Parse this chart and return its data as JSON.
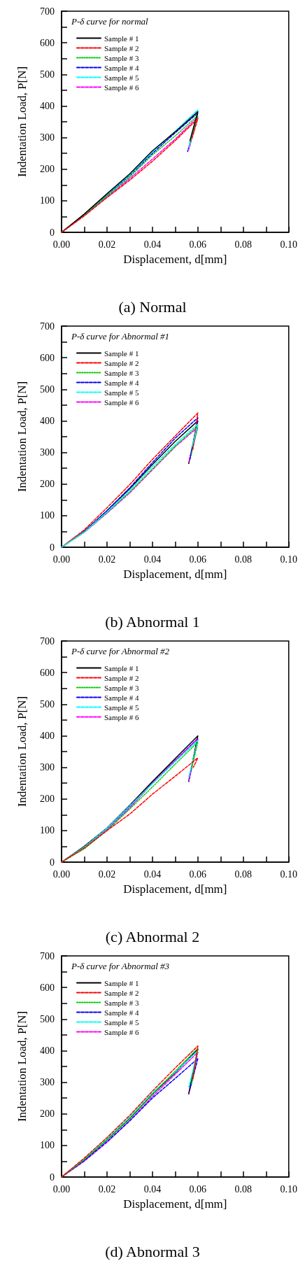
{
  "chart_data": [
    {
      "type": "line",
      "title": "(a) Normal",
      "legend_title": "P-δ curve for normal",
      "xlabel": "Displacement, d[mm]",
      "ylabel": "Indentation Load, P[N]",
      "xlim": [
        0,
        0.1
      ],
      "ylim": [
        0,
        700
      ],
      "xticks": [
        {
          "value": 0,
          "label": "0.00"
        },
        {
          "value": 0.01,
          "label": null
        },
        {
          "value": 0.02,
          "label": "0.02"
        },
        {
          "value": 0.03,
          "label": null
        },
        {
          "value": 0.04,
          "label": "0.04"
        },
        {
          "value": 0.05,
          "label": null
        },
        {
          "value": 0.06,
          "label": "0.06"
        },
        {
          "value": 0.07,
          "label": null
        },
        {
          "value": 0.08,
          "label": "0.08"
        },
        {
          "value": 0.09,
          "label": null
        },
        {
          "value": 0.1,
          "label": "0.10"
        }
      ],
      "yticks": [
        0,
        {
          "value": 50,
          "label": null
        },
        100,
        {
          "value": 150,
          "label": null
        },
        200,
        {
          "value": 250,
          "label": null
        },
        300,
        {
          "value": 350,
          "label": null
        },
        400,
        {
          "value": 450,
          "label": null
        },
        500,
        {
          "value": 550,
          "label": null
        },
        600,
        {
          "value": 650,
          "label": null
        },
        700
      ],
      "legend": "top left",
      "grid": false,
      "marker": "none",
      "series": [
        {
          "name": "Sample # 1",
          "color": "#000000",
          "line_style": "solid",
          "x": [
            0,
            0.01,
            0.02,
            0.03,
            0.04,
            0.05,
            0.06,
            0.0565
          ],
          "values": [
            0,
            58,
            122,
            185,
            258,
            318,
            382,
            290
          ]
        },
        {
          "name": "Sample # 2",
          "color": "#ff0000",
          "line_style": "dashed",
          "x": [
            0,
            0.01,
            0.02,
            0.03,
            0.04,
            0.05,
            0.06,
            0.0575
          ],
          "values": [
            0,
            52,
            110,
            165,
            225,
            290,
            360,
            300
          ]
        },
        {
          "name": "Sample # 3",
          "color": "#00cc00",
          "line_style": "dotted",
          "x": [
            0,
            0.01,
            0.02,
            0.03,
            0.04,
            0.05,
            0.06,
            0.0568
          ],
          "values": [
            0,
            55,
            115,
            175,
            245,
            305,
            370,
            285
          ]
        },
        {
          "name": "Sample # 4",
          "color": "#0000ff",
          "line_style": "dashed",
          "x": [
            0,
            0.01,
            0.02,
            0.03,
            0.04,
            0.05,
            0.06,
            0.0555
          ],
          "values": [
            0,
            56,
            118,
            180,
            250,
            315,
            378,
            256
          ]
        },
        {
          "name": "Sample # 5",
          "color": "#00ffff",
          "line_style": "dashed",
          "x": [
            0,
            0.01,
            0.02,
            0.03,
            0.04,
            0.05,
            0.06,
            0.056
          ],
          "values": [
            0,
            57,
            120,
            182,
            255,
            320,
            388,
            270
          ]
        },
        {
          "name": "Sample # 6",
          "color": "#ff00ff",
          "line_style": "dashed",
          "x": [
            0,
            0.01,
            0.02,
            0.03,
            0.04,
            0.05,
            0.06,
            0.056
          ],
          "values": [
            0,
            53,
            112,
            170,
            232,
            295,
            365,
            262
          ]
        }
      ]
    },
    {
      "type": "line",
      "title": "(b) Abnormal 1",
      "legend_title": "P-δ curve for Abnormal #1",
      "xlabel": "Displacement, d[mm]",
      "ylabel": "Indentation Load, P[N]",
      "xlim": [
        0,
        0.1
      ],
      "ylim": [
        0,
        700
      ],
      "xticks": [
        {
          "value": 0,
          "label": "0.00"
        },
        {
          "value": 0.01,
          "label": null
        },
        {
          "value": 0.02,
          "label": "0.02"
        },
        {
          "value": 0.03,
          "label": null
        },
        {
          "value": 0.04,
          "label": "0.04"
        },
        {
          "value": 0.05,
          "label": null
        },
        {
          "value": 0.06,
          "label": "0.06"
        },
        {
          "value": 0.07,
          "label": null
        },
        {
          "value": 0.08,
          "label": "0.08"
        },
        {
          "value": 0.09,
          "label": null
        },
        {
          "value": 0.1,
          "label": "0.10"
        }
      ],
      "yticks": [
        0,
        {
          "value": 50,
          "label": null
        },
        100,
        {
          "value": 150,
          "label": null
        },
        200,
        {
          "value": 250,
          "label": null
        },
        300,
        {
          "value": 350,
          "label": null
        },
        400,
        {
          "value": 450,
          "label": null
        },
        500,
        {
          "value": 550,
          "label": null
        },
        600,
        {
          "value": 650,
          "label": null
        },
        700
      ],
      "legend": "top left",
      "grid": false,
      "marker": "none",
      "series": [
        {
          "name": "Sample # 1",
          "color": "#000000",
          "line_style": "solid",
          "x": [
            0,
            0.01,
            0.02,
            0.03,
            0.04,
            0.05,
            0.06,
            0.056
          ],
          "values": [
            0,
            50,
            115,
            185,
            262,
            335,
            400,
            265
          ]
        },
        {
          "name": "Sample # 2",
          "color": "#ff0000",
          "line_style": "dashed",
          "x": [
            0,
            0.01,
            0.02,
            0.03,
            0.04,
            0.05,
            0.06,
            0.0578
          ],
          "values": [
            0,
            55,
            125,
            198,
            278,
            352,
            425,
            310
          ]
        },
        {
          "name": "Sample # 3",
          "color": "#00cc00",
          "line_style": "dotted",
          "x": [
            0,
            0.01,
            0.02,
            0.03,
            0.04,
            0.05,
            0.06,
            0.0572
          ],
          "values": [
            0,
            48,
            110,
            175,
            248,
            320,
            385,
            295
          ]
        },
        {
          "name": "Sample # 4",
          "color": "#0000ff",
          "line_style": "dashed",
          "x": [
            0,
            0.01,
            0.02,
            0.03,
            0.04,
            0.05,
            0.06,
            0.0566
          ],
          "values": [
            0,
            50,
            116,
            188,
            268,
            345,
            410,
            280
          ]
        },
        {
          "name": "Sample # 5",
          "color": "#00ffff",
          "line_style": "dashed",
          "x": [
            0,
            0.01,
            0.02,
            0.03,
            0.04,
            0.05,
            0.06,
            0.0575
          ],
          "values": [
            0,
            48,
            112,
            180,
            255,
            325,
            390,
            320
          ]
        },
        {
          "name": "Sample # 6",
          "color": "#ff00ff",
          "line_style": "dashed",
          "x": [
            0,
            0.01,
            0.02,
            0.03,
            0.04,
            0.05,
            0.06,
            0.056
          ],
          "values": [
            0,
            47,
            108,
            172,
            245,
            318,
            380,
            270
          ]
        }
      ]
    },
    {
      "type": "line",
      "title": "(c) Abnormal 2",
      "legend_title": "P-δ curve for Abnormal #2",
      "xlabel": "Displacement, d[mm]",
      "ylabel": "Indentation Load, P[N]",
      "xlim": [
        0,
        0.1
      ],
      "ylim": [
        0,
        700
      ],
      "xticks": [
        {
          "value": 0,
          "label": "0.00"
        },
        {
          "value": 0.01,
          "label": null
        },
        {
          "value": 0.02,
          "label": "0.02"
        },
        {
          "value": 0.03,
          "label": null
        },
        {
          "value": 0.04,
          "label": "0.04"
        },
        {
          "value": 0.05,
          "label": null
        },
        {
          "value": 0.06,
          "label": "0.06"
        },
        {
          "value": 0.07,
          "label": null
        },
        {
          "value": 0.08,
          "label": "0.08"
        },
        {
          "value": 0.09,
          "label": null
        },
        {
          "value": 0.1,
          "label": "0.10"
        }
      ],
      "yticks": [
        0,
        {
          "value": 50,
          "label": null
        },
        100,
        {
          "value": 150,
          "label": null
        },
        200,
        {
          "value": 250,
          "label": null
        },
        300,
        {
          "value": 350,
          "label": null
        },
        400,
        {
          "value": 450,
          "label": null
        },
        500,
        {
          "value": 550,
          "label": null
        },
        600,
        {
          "value": 650,
          "label": null
        },
        700
      ],
      "legend": "top left",
      "grid": false,
      "marker": "none",
      "series": [
        {
          "name": "Sample # 1",
          "color": "#000000",
          "line_style": "solid",
          "x": [
            0,
            0.01,
            0.02,
            0.03,
            0.04,
            0.05,
            0.06,
            0.056
          ],
          "values": [
            0,
            50,
            108,
            180,
            255,
            328,
            400,
            258
          ]
        },
        {
          "name": "Sample # 2",
          "color": "#ff0000",
          "line_style": "dashed",
          "x": [
            0,
            0.01,
            0.02,
            0.03,
            0.04,
            0.05,
            0.06,
            0.058
          ],
          "values": [
            0,
            45,
            100,
            152,
            215,
            272,
            330,
            300
          ]
        },
        {
          "name": "Sample # 3",
          "color": "#00cc00",
          "line_style": "dotted",
          "x": [
            0,
            0.01,
            0.02,
            0.03,
            0.04,
            0.05,
            0.06,
            0.0572
          ],
          "values": [
            0,
            42,
            100,
            168,
            238,
            310,
            380,
            295
          ]
        },
        {
          "name": "Sample # 4",
          "color": "#0000ff",
          "line_style": "dashed",
          "x": [
            0,
            0.01,
            0.02,
            0.03,
            0.04,
            0.05,
            0.06,
            0.056
          ],
          "values": [
            0,
            48,
            106,
            176,
            250,
            322,
            392,
            255
          ]
        },
        {
          "name": "Sample # 5",
          "color": "#00ffff",
          "line_style": "dashed",
          "x": [
            0,
            0.01,
            0.02,
            0.03,
            0.04,
            0.05,
            0.06,
            0.056
          ],
          "values": [
            0,
            48,
            107,
            178,
            248,
            318,
            385,
            270
          ]
        },
        {
          "name": "Sample # 6",
          "color": "#ff00ff",
          "line_style": "dashed",
          "x": [
            0,
            0.01,
            0.02,
            0.03,
            0.04,
            0.05,
            0.06,
            0.056
          ],
          "values": [
            0,
            44,
            102,
            171,
            250,
            322,
            390,
            258
          ]
        }
      ]
    },
    {
      "type": "line",
      "title": "(d) Abnormal 3",
      "legend_title": "P-δ curve for Abnormal #3",
      "xlabel": "Displacement, d[mm]",
      "ylabel": "Indentation Load, P[N]",
      "xlim": [
        0,
        0.1
      ],
      "ylim": [
        0,
        700
      ],
      "xticks": [
        {
          "value": 0,
          "label": "0.00"
        },
        {
          "value": 0.01,
          "label": null
        },
        {
          "value": 0.02,
          "label": "0.02"
        },
        {
          "value": 0.03,
          "label": null
        },
        {
          "value": 0.04,
          "label": "0.04"
        },
        {
          "value": 0.05,
          "label": null
        },
        {
          "value": 0.06,
          "label": "0.06"
        },
        {
          "value": 0.07,
          "label": null
        },
        {
          "value": 0.08,
          "label": "0.08"
        },
        {
          "value": 0.09,
          "label": null
        },
        {
          "value": 0.1,
          "label": "0.10"
        }
      ],
      "yticks": [
        0,
        {
          "value": 50,
          "label": null
        },
        100,
        {
          "value": 150,
          "label": null
        },
        200,
        {
          "value": 250,
          "label": null
        },
        300,
        {
          "value": 350,
          "label": null
        },
        400,
        {
          "value": 450,
          "label": null
        },
        500,
        {
          "value": 550,
          "label": null
        },
        600,
        {
          "value": 650,
          "label": null
        },
        700
      ],
      "legend": "top left",
      "grid": false,
      "marker": "none",
      "series": [
        {
          "name": "Sample # 1",
          "color": "#000000",
          "line_style": "solid",
          "x": [
            0,
            0.01,
            0.02,
            0.03,
            0.04,
            0.05,
            0.06,
            0.056
          ],
          "values": [
            0,
            55,
            118,
            185,
            262,
            330,
            405,
            265
          ]
        },
        {
          "name": "Sample # 2",
          "color": "#ff0000",
          "line_style": "dashed",
          "x": [
            0,
            0.01,
            0.02,
            0.03,
            0.04,
            0.05,
            0.06,
            0.0578
          ],
          "values": [
            0,
            60,
            125,
            195,
            272,
            345,
            415,
            310
          ]
        },
        {
          "name": "Sample # 3",
          "color": "#00cc00",
          "line_style": "dotted",
          "x": [
            0,
            0.01,
            0.02,
            0.03,
            0.04,
            0.05,
            0.06,
            0.0572
          ],
          "values": [
            0,
            55,
            118,
            186,
            262,
            335,
            408,
            295
          ]
        },
        {
          "name": "Sample # 4",
          "color": "#0000ff",
          "line_style": "dashed",
          "x": [
            0,
            0.01,
            0.02,
            0.03,
            0.04,
            0.05,
            0.06,
            0.0566
          ],
          "values": [
            0,
            52,
            112,
            178,
            250,
            312,
            375,
            280
          ]
        },
        {
          "name": "Sample # 5",
          "color": "#00ffff",
          "line_style": "dashed",
          "x": [
            0,
            0.01,
            0.02,
            0.03,
            0.04,
            0.05,
            0.06,
            0.056
          ],
          "values": [
            0,
            57,
            121,
            190,
            267,
            332,
            400,
            285
          ]
        },
        {
          "name": "Sample # 6",
          "color": "#ff00ff",
          "line_style": "dashed",
          "x": [
            0,
            0.01,
            0.02,
            0.03,
            0.04,
            0.05,
            0.06,
            0.056
          ],
          "values": [
            0,
            50,
            110,
            178,
            255,
            325,
            395,
            262
          ]
        }
      ]
    }
  ]
}
